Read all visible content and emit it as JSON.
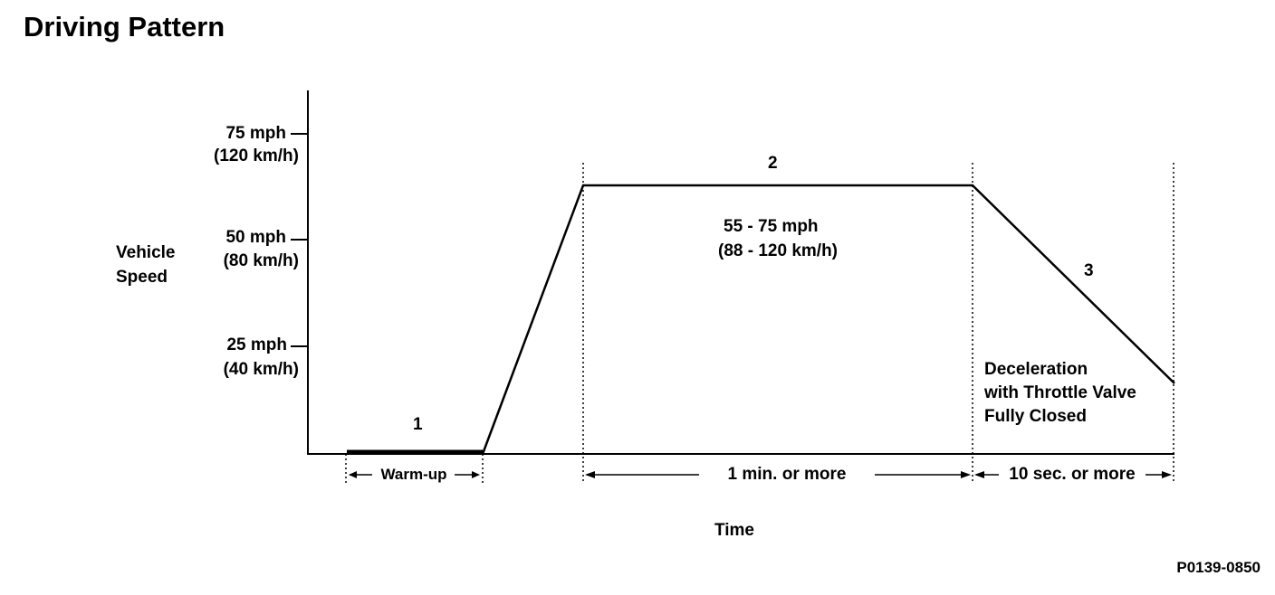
{
  "title": "Driving Pattern",
  "y_axis": {
    "label_line1": "Vehicle",
    "label_line2": "Speed",
    "ticks": [
      {
        "mph": "75 mph",
        "kmh": "(120 km/h)"
      },
      {
        "mph": "50 mph",
        "kmh": "(80 km/h)"
      },
      {
        "mph": "25 mph",
        "kmh": "(40 km/h)"
      }
    ]
  },
  "x_axis": {
    "label": "Time"
  },
  "phases": [
    {
      "number": "1",
      "duration": "Warm-up"
    },
    {
      "number": "2",
      "duration": "1 min. or more",
      "speed_line1": "55 - 75 mph",
      "speed_line2": "(88 - 120 km/h)"
    },
    {
      "number": "3",
      "duration": "10 sec. or more",
      "note_line1": "Deceleration",
      "note_line2": "with Throttle Valve",
      "note_line3": "Fully Closed"
    }
  ],
  "figure_code": "P0139-0850"
}
